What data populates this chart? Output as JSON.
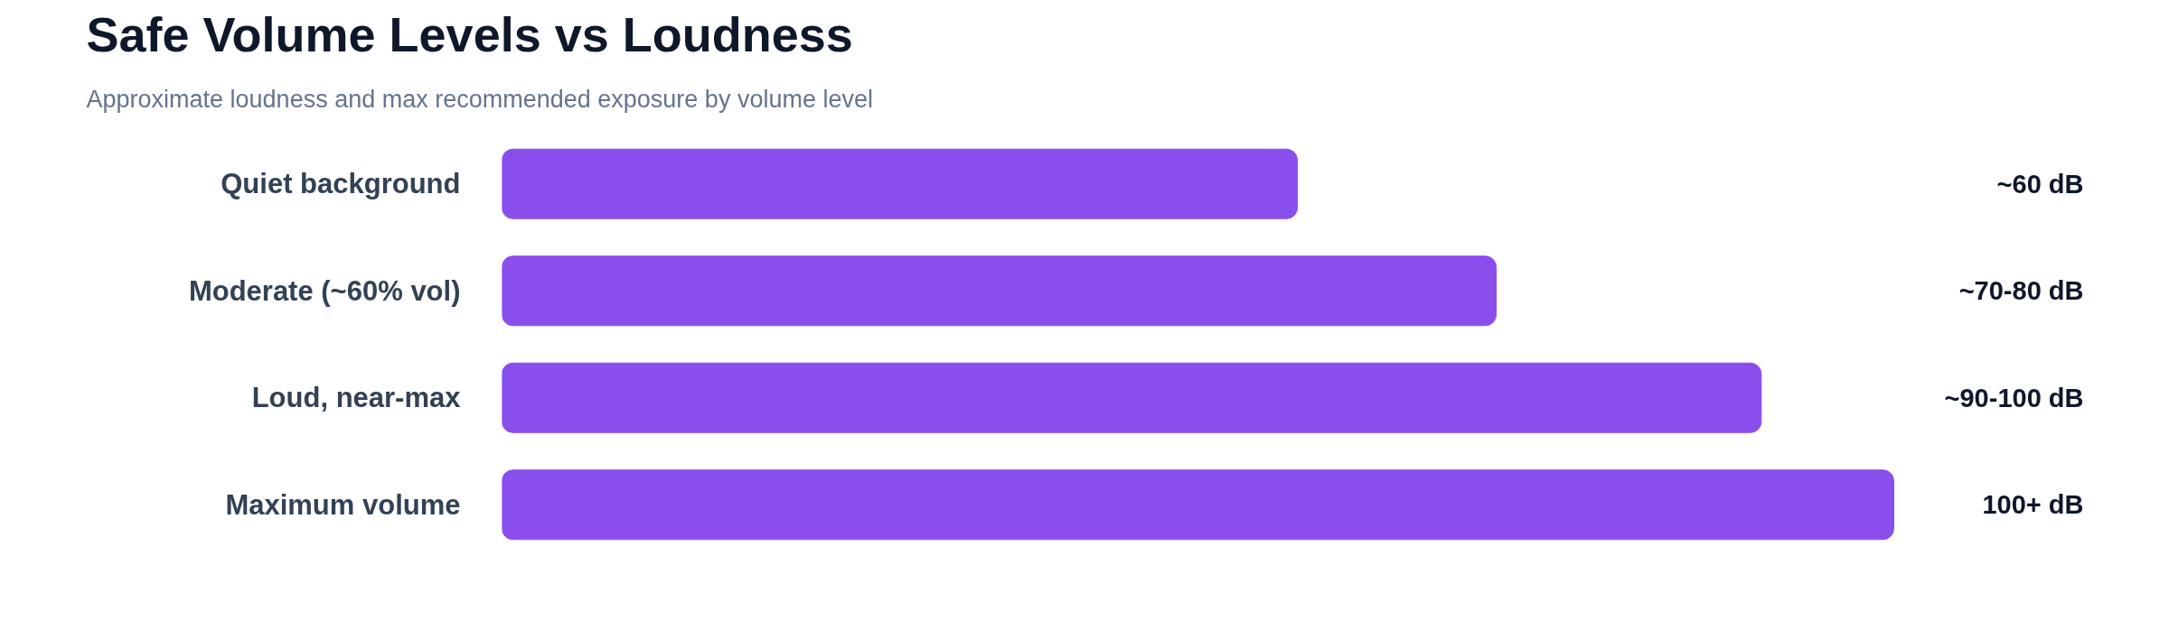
{
  "chart_data": {
    "type": "bar",
    "orientation": "horizontal",
    "title": "Safe Volume Levels vs Loudness",
    "subtitle": "Approximate loudness and max recommended exposure by volume level",
    "categories": [
      "Quiet background",
      "Moderate (~60% vol)",
      "Loud, near-max",
      "Maximum volume"
    ],
    "xlim": [
      0,
      105
    ],
    "tick_labels": "y",
    "series": [
      {
        "color": "#8a4eec",
        "values": [
          60,
          75,
          95,
          105
        ],
        "value_labels": [
          "~60 dB",
          "~70-80 dB",
          "~90-100 dB",
          "100+ dB"
        ]
      }
    ],
    "grid": false
  }
}
